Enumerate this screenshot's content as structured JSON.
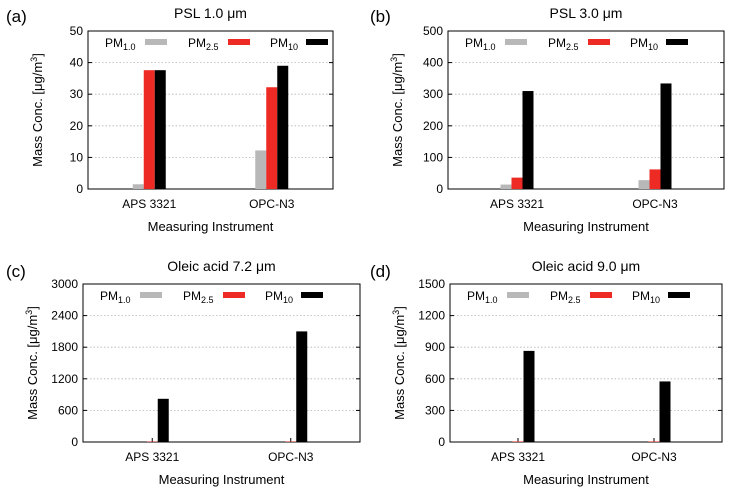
{
  "figure": {
    "xlabel": "Measuring Instrument",
    "ylabel_main": "Mass Conc. [μg/m",
    "ylabel_sup": "3",
    "ylabel_end": "]"
  },
  "chart_data": [
    {
      "panel": "(a)",
      "type": "bar",
      "title": "PSL 1.0 μm",
      "xlabel": "Measuring Instrument",
      "ylabel": "Mass Conc. [μg/m3]",
      "categories": [
        "APS 3321",
        "OPC-N3"
      ],
      "ylim": [
        0,
        50
      ],
      "yticks": [
        0,
        10,
        20,
        30,
        40,
        50
      ],
      "grid": true,
      "legend_position": "top",
      "series": [
        {
          "name": "PM1.0",
          "base": "PM",
          "sub": "1.0",
          "color": "#b8b8b8",
          "values": [
            1.5,
            12.2
          ]
        },
        {
          "name": "PM2.5",
          "base": "PM",
          "sub": "2.5",
          "color": "#ee2a24",
          "values": [
            37.6,
            32.2
          ]
        },
        {
          "name": "PM10",
          "base": "PM",
          "sub": "10",
          "color": "#000000",
          "values": [
            37.6,
            39.0
          ]
        }
      ]
    },
    {
      "panel": "(b)",
      "type": "bar",
      "title": "PSL 3.0 μm",
      "xlabel": "Measuring Instrument",
      "ylabel": "Mass Conc. [μg/m3]",
      "categories": [
        "APS 3321",
        "OPC-N3"
      ],
      "ylim": [
        0,
        500
      ],
      "yticks": [
        0,
        100,
        200,
        300,
        400,
        500
      ],
      "grid": true,
      "legend_position": "top",
      "series": [
        {
          "name": "PM1.0",
          "base": "PM",
          "sub": "1.0",
          "color": "#b8b8b8",
          "values": [
            14,
            28
          ]
        },
        {
          "name": "PM2.5",
          "base": "PM",
          "sub": "2.5",
          "color": "#ee2a24",
          "values": [
            36,
            62
          ]
        },
        {
          "name": "PM10",
          "base": "PM",
          "sub": "10",
          "color": "#000000",
          "values": [
            310,
            334
          ]
        }
      ]
    },
    {
      "panel": "(c)",
      "type": "bar",
      "title": "Oleic acid 7.2 μm",
      "xlabel": "Measuring Instrument",
      "ylabel": "Mass Conc. [μg/m3]",
      "categories": [
        "APS 3321",
        "OPC-N3"
      ],
      "ylim": [
        0,
        3000
      ],
      "yticks": [
        0,
        600,
        1200,
        1800,
        2400,
        3000
      ],
      "grid": true,
      "legend_position": "top",
      "series": [
        {
          "name": "PM1.0",
          "base": "PM",
          "sub": "1.0",
          "color": "#b8b8b8",
          "values": [
            0,
            0
          ]
        },
        {
          "name": "PM2.5",
          "base": "PM",
          "sub": "2.5",
          "color": "#ee2a24",
          "values": [
            8,
            8
          ]
        },
        {
          "name": "PM10",
          "base": "PM",
          "sub": "10",
          "color": "#000000",
          "values": [
            820,
            2100
          ]
        }
      ]
    },
    {
      "panel": "(d)",
      "type": "bar",
      "title": "Oleic acid 9.0 μm",
      "xlabel": "Measuring Instrument",
      "ylabel": "Mass Conc. [μg/m3]",
      "categories": [
        "APS 3321",
        "OPC-N3"
      ],
      "ylim": [
        0,
        1500
      ],
      "yticks": [
        0,
        300,
        600,
        900,
        1200,
        1500
      ],
      "grid": true,
      "legend_position": "top",
      "series": [
        {
          "name": "PM1.0",
          "base": "PM",
          "sub": "1.0",
          "color": "#b8b8b8",
          "values": [
            0,
            0
          ]
        },
        {
          "name": "PM2.5",
          "base": "PM",
          "sub": "2.5",
          "color": "#ee2a24",
          "values": [
            5,
            5
          ]
        },
        {
          "name": "PM10",
          "base": "PM",
          "sub": "10",
          "color": "#000000",
          "values": [
            865,
            575
          ]
        }
      ]
    }
  ]
}
